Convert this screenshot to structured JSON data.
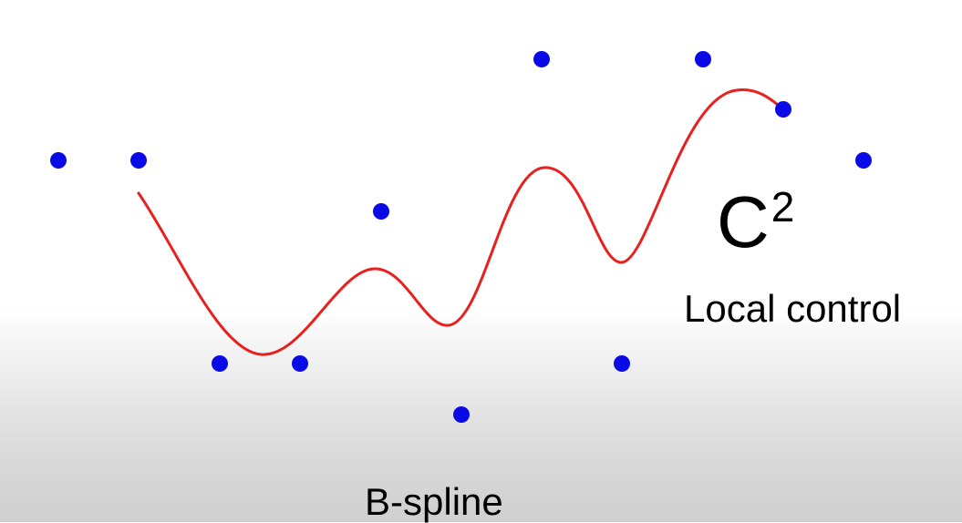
{
  "labels": {
    "continuity_base": "C",
    "continuity_exp": "2",
    "property": "Local control",
    "title": "B-spline"
  },
  "colors": {
    "control_point": "#0a0ae6",
    "curve": "#e8201e",
    "text": "#000000"
  },
  "diagram": {
    "control_points": [
      {
        "id": "p0"
      },
      {
        "id": "p1"
      },
      {
        "id": "p2"
      },
      {
        "id": "p3"
      },
      {
        "id": "p4"
      },
      {
        "id": "p5"
      },
      {
        "id": "p6"
      },
      {
        "id": "p7"
      },
      {
        "id": "p8"
      },
      {
        "id": "p9"
      },
      {
        "id": "p10"
      },
      {
        "id": "p11"
      }
    ]
  }
}
